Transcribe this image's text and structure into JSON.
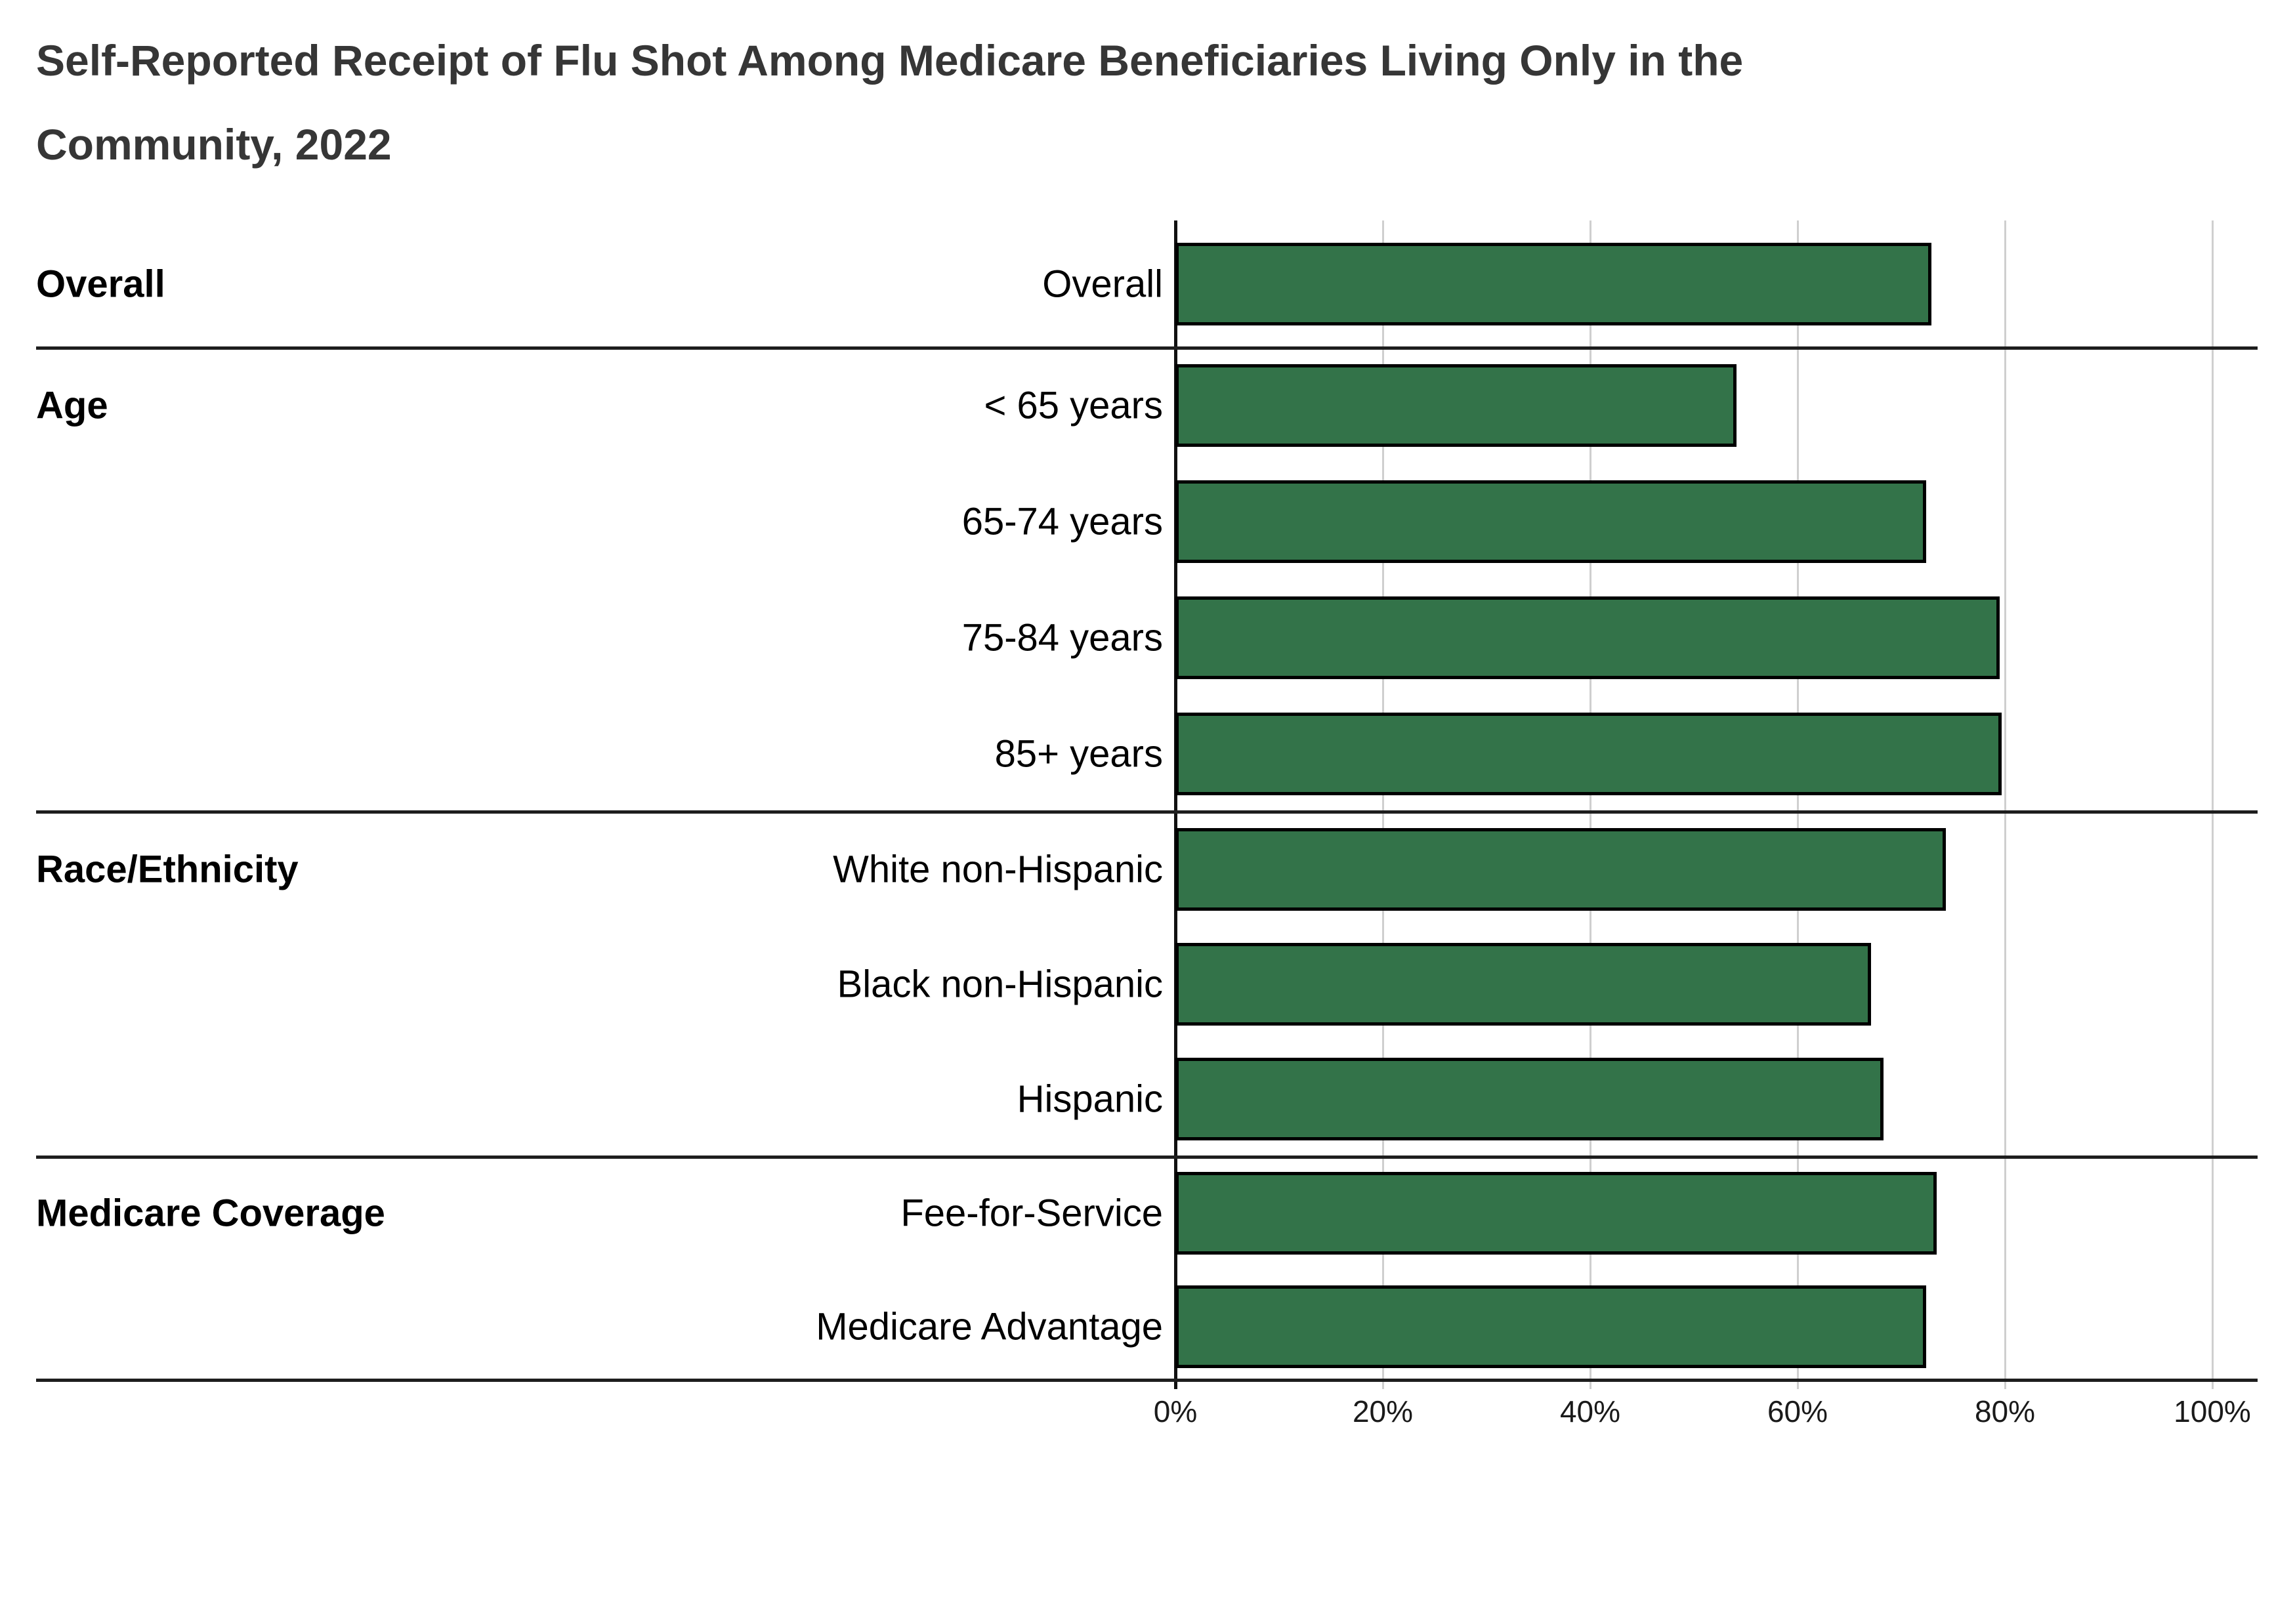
{
  "title": "Self-Reported Receipt of Flu Shot Among Medicare Beneficiaries Living Only in the Community, 2022",
  "colors": {
    "bar_fill": "#337349",
    "bar_border": "#000000",
    "gridline": "#cfcfcf",
    "zero_axis": "#111111",
    "section_divider": "#1e1e1e",
    "title_text": "#363636",
    "label_text": "#000000"
  },
  "chart_data": {
    "type": "bar",
    "orientation": "horizontal",
    "title": "Self-Reported Receipt of Flu Shot Among Medicare Beneficiaries Living Only in the Community, 2022",
    "xlabel": "",
    "ylabel": "",
    "unit": "%",
    "xlim": [
      0,
      100
    ],
    "grid": true,
    "legend": false,
    "x_axis": {
      "tick_labels": [
        "0%",
        "20%",
        "40%",
        "60%",
        "80%",
        "100%"
      ],
      "tick_values": [
        0,
        20,
        40,
        60,
        80,
        100
      ]
    },
    "sections": [
      {
        "label": "Overall",
        "rows": [
          {
            "label": "Overall",
            "value": 72.9
          }
        ]
      },
      {
        "label": "Age",
        "rows": [
          {
            "label": "< 65 years",
            "value": 54.1
          },
          {
            "label": "65-74 years",
            "value": 72.4
          },
          {
            "label": "75-84 years",
            "value": 79.5
          },
          {
            "label": "85+ years",
            "value": 79.7
          }
        ]
      },
      {
        "label": "Race/Ethnicity",
        "rows": [
          {
            "label": "White non-Hispanic",
            "value": 74.3
          },
          {
            "label": "Black non-Hispanic",
            "value": 67.1
          },
          {
            "label": "Hispanic",
            "value": 68.3
          }
        ]
      },
      {
        "label": "Medicare Coverage",
        "rows": [
          {
            "label": "Fee-for-Service",
            "value": 73.4
          },
          {
            "label": "Medicare Advantage",
            "value": 72.4
          }
        ]
      }
    ]
  }
}
